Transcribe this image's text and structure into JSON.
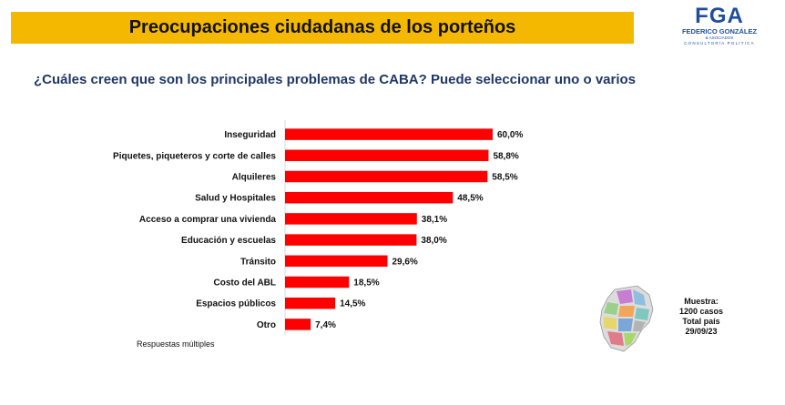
{
  "header": {
    "title": "Preocupaciones ciudadanas de los porteños"
  },
  "logo": {
    "mark": "FGA",
    "name": "FEDERICO GONZÁLEZ",
    "sub1": "& ASOCIADOS",
    "sub2": "CONSULTORÍA POLÍTICA"
  },
  "question": "¿Cuáles creen que son los principales problemas de CABA? Puede seleccionar uno o varios",
  "note": "Respuestas múltiples",
  "sample": {
    "l1": "Muestra:",
    "l2": "1200 casos",
    "l3": "Total país",
    "l4": "29/09/23"
  },
  "colors": {
    "bar": "#ff0000",
    "banner": "#f5b800",
    "question": "#1f3864"
  },
  "chart_data": {
    "type": "bar",
    "orientation": "horizontal",
    "categories": [
      "Inseguridad",
      "Piquetes, piqueteros y corte de calles",
      "Alquileres",
      "Salud y Hospitales",
      "Acceso a comprar una vivienda",
      "Educación y escuelas",
      "Tránsito",
      "Costo del ABL",
      "Espacios públicos",
      "Otro"
    ],
    "values": [
      60.0,
      58.8,
      58.5,
      48.5,
      38.1,
      38.0,
      29.6,
      18.5,
      14.5,
      7.4
    ],
    "labels": [
      "60,0%",
      "58,8%",
      "58,5%",
      "48,5%",
      "38,1%",
      "38,0%",
      "29,6%",
      "18,5%",
      "14,5%",
      "7,4%"
    ],
    "xlim": [
      0,
      60
    ],
    "grid": false,
    "legend": "none"
  }
}
